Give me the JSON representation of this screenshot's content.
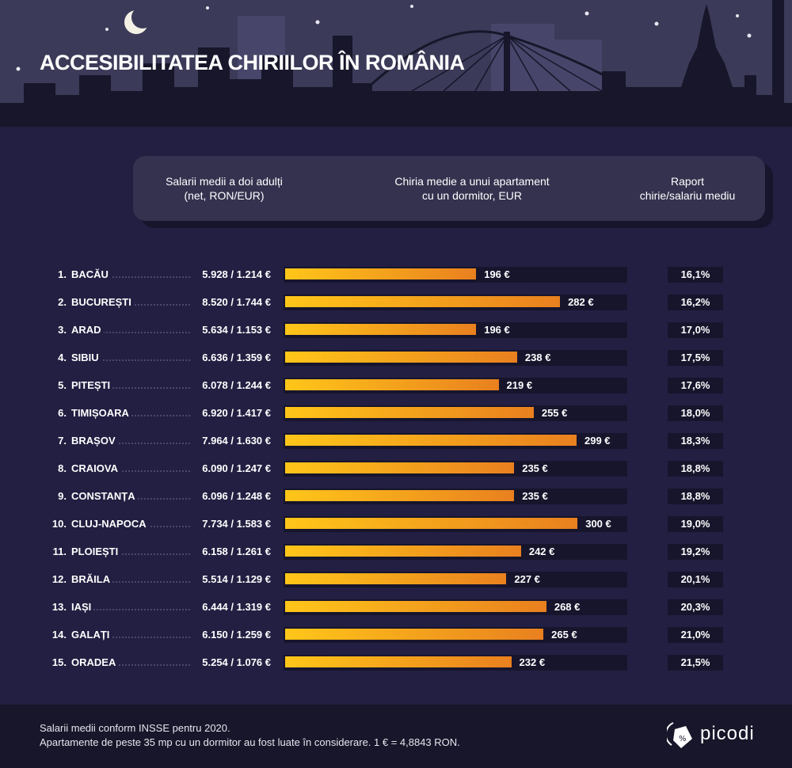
{
  "title": "ACCESIBILITATEA CHIRIILOR ÎN ROMÂNIA",
  "header": {
    "col1": [
      "Salarii medii a doi adulți",
      "(net, RON/EUR)"
    ],
    "col2": [
      "Chiria medie a unui apartament",
      "cu un dormitor, EUR"
    ],
    "col3": [
      "Raport",
      "chirie/salariu mediu"
    ]
  },
  "colors": {
    "bar_start": "#ffc619",
    "bar_end": "#e9801f",
    "background": "#231f42"
  },
  "chart_data": {
    "type": "bar",
    "orientation": "horizontal",
    "categories": [
      "BACĂU",
      "BUCUREȘTI",
      "ARAD",
      "SIBIU",
      "PITEȘTI",
      "TIMIȘOARA",
      "BRAȘOV",
      "CRAIOVA",
      "CONSTANȚA",
      "CLUJ-NAPOCA",
      "PLOIEȘTI",
      "BRĂILA",
      "IAȘI",
      "GALAȚI",
      "ORADEA"
    ],
    "ranks": [
      "1.",
      "2.",
      "3.",
      "4.",
      "5.",
      "6.",
      "7.",
      "8.",
      "9.",
      "10.",
      "11.",
      "12.",
      "13.",
      "14.",
      "15."
    ],
    "salaries": [
      "5.928 / 1.214 €",
      "8.520 / 1.744 €",
      "5.634 / 1.153 €",
      "6.636 / 1.359 €",
      "6.078 / 1.244 €",
      "6.920 / 1.417 €",
      "7.964 / 1.630 €",
      "6.090 / 1.247 €",
      "6.096 / 1.248 €",
      "7.734 / 1.583 €",
      "6.158 / 1.261 €",
      "5.514 / 1.129 €",
      "6.444 / 1.319 €",
      "6.150 / 1.259 €",
      "5.254 / 1.076 €"
    ],
    "values": [
      196,
      282,
      196,
      238,
      219,
      255,
      299,
      235,
      235,
      300,
      242,
      227,
      268,
      265,
      232
    ],
    "value_labels": [
      "196 €",
      "282 €",
      "196 €",
      "238 €",
      "219 €",
      "255 €",
      "299 €",
      "235 €",
      "235 €",
      "300 €",
      "242 €",
      "227 €",
      "268 €",
      "265 €",
      "232 €"
    ],
    "ratios": [
      "16,1%",
      "16,2%",
      "17,0%",
      "17,5%",
      "17,6%",
      "18,0%",
      "18,3%",
      "18,8%",
      "18,8%",
      "19,0%",
      "19,2%",
      "20,1%",
      "20,3%",
      "21,0%",
      "21,5%"
    ],
    "xlim": [
      0,
      351
    ],
    "grid": false
  },
  "footer": {
    "note1": "Salarii medii conform INSSE pentru 2020.",
    "note2": "Apartamente de peste 35 mp cu un dormitor au fost luate în considerare. 1 € = 4,8843 RON.",
    "brand": "picodi"
  }
}
